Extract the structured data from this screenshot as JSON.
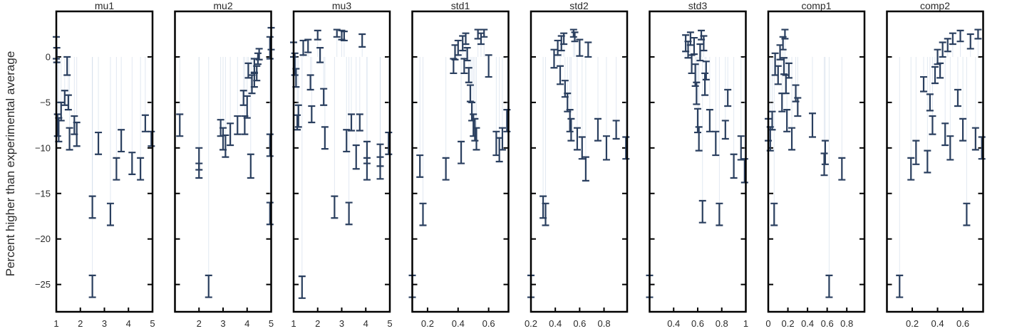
{
  "chart_data": {
    "type": "scatter",
    "ylabel": "Percent higher than experimental average",
    "ylim": [
      -28,
      5
    ],
    "yticks": [
      0,
      -5,
      -10,
      -15,
      -20,
      -25
    ],
    "grid": false,
    "marker": "error-bar",
    "color": "#2a3f5f",
    "panels": [
      {
        "title": "mu1",
        "xlim": [
          1,
          5
        ],
        "xticks": [
          1,
          2,
          3,
          4,
          5
        ],
        "points": [
          {
            "x": 1.0,
            "y": 1.0,
            "e": 1.2
          },
          {
            "x": 1.02,
            "y": 0.2,
            "e": 0.8
          },
          {
            "x": 1.05,
            "y": -7.5,
            "e": 1.2
          },
          {
            "x": 1.1,
            "y": -8.0,
            "e": 1.3
          },
          {
            "x": 1.2,
            "y": -6.0,
            "e": 1.0
          },
          {
            "x": 1.35,
            "y": -4.5,
            "e": 0.8
          },
          {
            "x": 1.45,
            "y": -1.0,
            "e": 1.0
          },
          {
            "x": 1.5,
            "y": -5.0,
            "e": 0.8
          },
          {
            "x": 1.55,
            "y": -9.0,
            "e": 1.2
          },
          {
            "x": 1.75,
            "y": -7.5,
            "e": 1.0
          },
          {
            "x": 1.85,
            "y": -8.5,
            "e": 1.3
          },
          {
            "x": 2.5,
            "y": -16.5,
            "e": 1.2
          },
          {
            "x": 2.5,
            "y": -25.2,
            "e": 1.2
          },
          {
            "x": 2.75,
            "y": -9.5,
            "e": 1.2
          },
          {
            "x": 3.25,
            "y": -17.3,
            "e": 1.2
          },
          {
            "x": 3.5,
            "y": -12.3,
            "e": 1.2
          },
          {
            "x": 3.7,
            "y": -9.2,
            "e": 1.2
          },
          {
            "x": 4.15,
            "y": -11.7,
            "e": 1.2
          },
          {
            "x": 4.5,
            "y": -12.3,
            "e": 1.2
          },
          {
            "x": 4.7,
            "y": -7.3,
            "e": 0.9
          },
          {
            "x": 4.95,
            "y": -9.0,
            "e": 0.8
          }
        ]
      },
      {
        "title": "mu2",
        "xlim": [
          1,
          5
        ],
        "xticks": [
          2,
          3,
          4,
          5
        ],
        "points": [
          {
            "x": 1.2,
            "y": -7.5,
            "e": 1.2
          },
          {
            "x": 2.0,
            "y": -11.2,
            "e": 1.2
          },
          {
            "x": 2.0,
            "y": -12.5,
            "e": 0.8
          },
          {
            "x": 2.4,
            "y": -25.2,
            "e": 1.2
          },
          {
            "x": 2.9,
            "y": -7.8,
            "e": 0.9
          },
          {
            "x": 3.0,
            "y": -9.0,
            "e": 1.2
          },
          {
            "x": 3.1,
            "y": -9.8,
            "e": 1.2
          },
          {
            "x": 3.3,
            "y": -8.5,
            "e": 1.2
          },
          {
            "x": 3.6,
            "y": -7.5,
            "e": 1.0
          },
          {
            "x": 3.85,
            "y": -4.5,
            "e": 0.8
          },
          {
            "x": 3.9,
            "y": -7.5,
            "e": 1.0
          },
          {
            "x": 4.0,
            "y": -5.5,
            "e": 1.2
          },
          {
            "x": 4.05,
            "y": -1.5,
            "e": 0.8
          },
          {
            "x": 4.15,
            "y": -12.0,
            "e": 1.3
          },
          {
            "x": 4.2,
            "y": -3.0,
            "e": 1.0
          },
          {
            "x": 4.3,
            "y": -1.0,
            "e": 0.8
          },
          {
            "x": 4.3,
            "y": -2.5,
            "e": 0.8
          },
          {
            "x": 4.4,
            "y": -1.8,
            "e": 0.8
          },
          {
            "x": 4.45,
            "y": -0.2,
            "e": 0.6
          },
          {
            "x": 4.5,
            "y": 0.3,
            "e": 0.6
          },
          {
            "x": 4.95,
            "y": -17.2,
            "e": 1.2
          },
          {
            "x": 4.95,
            "y": -9.7,
            "e": 1.2
          },
          {
            "x": 4.95,
            "y": 1.0,
            "e": 1.2
          },
          {
            "x": 5.0,
            "y": 2.0,
            "e": 1.2
          }
        ]
      },
      {
        "title": "mu3",
        "xlim": [
          1,
          5
        ],
        "xticks": [
          1,
          2,
          3,
          4,
          5
        ],
        "points": [
          {
            "x": 1.0,
            "y": 0.8,
            "e": 0.8
          },
          {
            "x": 1.05,
            "y": -0.8,
            "e": 1.2
          },
          {
            "x": 1.1,
            "y": -2.3,
            "e": 1.0
          },
          {
            "x": 1.15,
            "y": -7.2,
            "e": 0.8
          },
          {
            "x": 1.2,
            "y": -6.5,
            "e": 1.2
          },
          {
            "x": 1.35,
            "y": -25.3,
            "e": 1.2
          },
          {
            "x": 1.4,
            "y": 1.0,
            "e": 0.8
          },
          {
            "x": 1.6,
            "y": 1.2,
            "e": 0.7
          },
          {
            "x": 1.7,
            "y": -2.8,
            "e": 0.8
          },
          {
            "x": 1.75,
            "y": -6.3,
            "e": 0.9
          },
          {
            "x": 2.0,
            "y": 2.4,
            "e": 0.5
          },
          {
            "x": 2.1,
            "y": 0.2,
            "e": 0.8
          },
          {
            "x": 2.25,
            "y": -4.4,
            "e": 0.9
          },
          {
            "x": 2.3,
            "y": -8.9,
            "e": 1.2
          },
          {
            "x": 2.7,
            "y": -16.5,
            "e": 1.2
          },
          {
            "x": 2.8,
            "y": 2.6,
            "e": 0.4
          },
          {
            "x": 3.0,
            "y": 2.4,
            "e": 0.5
          },
          {
            "x": 3.1,
            "y": 2.3,
            "e": 0.5
          },
          {
            "x": 3.2,
            "y": -9.2,
            "e": 1.2
          },
          {
            "x": 3.3,
            "y": -17.2,
            "e": 1.2
          },
          {
            "x": 3.4,
            "y": -7.2,
            "e": 0.9
          },
          {
            "x": 3.6,
            "y": -11.0,
            "e": 1.3
          },
          {
            "x": 3.75,
            "y": -7.2,
            "e": 0.9
          },
          {
            "x": 3.85,
            "y": 1.8,
            "e": 0.7
          },
          {
            "x": 4.05,
            "y": -10.5,
            "e": 1.2
          },
          {
            "x": 4.05,
            "y": -12.3,
            "e": 1.2
          },
          {
            "x": 4.6,
            "y": -10.8,
            "e": 1.2
          },
          {
            "x": 4.6,
            "y": -12.2,
            "e": 1.2
          },
          {
            "x": 4.95,
            "y": -9.5,
            "e": 1.2
          }
        ]
      },
      {
        "title": "std1",
        "xlim": [
          0.1,
          0.73
        ],
        "xticks": [
          0.2,
          0.4,
          0.6
        ],
        "points": [
          {
            "x": 0.1,
            "y": -25.2,
            "e": 1.2
          },
          {
            "x": 0.15,
            "y": -12.0,
            "e": 1.2
          },
          {
            "x": 0.17,
            "y": -17.3,
            "e": 1.2
          },
          {
            "x": 0.32,
            "y": -12.3,
            "e": 1.2
          },
          {
            "x": 0.37,
            "y": -1.0,
            "e": 0.8
          },
          {
            "x": 0.38,
            "y": 0.5,
            "e": 0.8
          },
          {
            "x": 0.4,
            "y": 1.0,
            "e": 0.8
          },
          {
            "x": 0.42,
            "y": -10.5,
            "e": 1.2
          },
          {
            "x": 0.43,
            "y": 1.5,
            "e": 0.8
          },
          {
            "x": 0.44,
            "y": -1.0,
            "e": 0.8
          },
          {
            "x": 0.45,
            "y": 2.0,
            "e": 0.6
          },
          {
            "x": 0.46,
            "y": 0.3,
            "e": 0.7
          },
          {
            "x": 0.47,
            "y": -2.0,
            "e": 0.8
          },
          {
            "x": 0.48,
            "y": -4.0,
            "e": 0.9
          },
          {
            "x": 0.49,
            "y": -6.0,
            "e": 1.0
          },
          {
            "x": 0.5,
            "y": -7.5,
            "e": 1.2
          },
          {
            "x": 0.51,
            "y": -8.0,
            "e": 1.2
          },
          {
            "x": 0.52,
            "y": -9.0,
            "e": 1.2
          },
          {
            "x": 0.53,
            "y": 2.5,
            "e": 0.5
          },
          {
            "x": 0.55,
            "y": 2.0,
            "e": 0.6
          },
          {
            "x": 0.57,
            "y": 2.6,
            "e": 0.4
          },
          {
            "x": 0.6,
            "y": -1.0,
            "e": 1.2
          },
          {
            "x": 0.65,
            "y": -9.5,
            "e": 1.3
          },
          {
            "x": 0.67,
            "y": -10.2,
            "e": 1.3
          },
          {
            "x": 0.69,
            "y": -9.0,
            "e": 1.2
          },
          {
            "x": 0.72,
            "y": -7.0,
            "e": 1.2
          }
        ]
      },
      {
        "title": "std2",
        "xlim": [
          0.2,
          0.99
        ],
        "xticks": [
          0.2,
          0.4,
          0.6,
          0.8
        ],
        "points": [
          {
            "x": 0.2,
            "y": -25.2,
            "e": 1.2
          },
          {
            "x": 0.3,
            "y": -16.5,
            "e": 1.2
          },
          {
            "x": 0.32,
            "y": -17.3,
            "e": 1.2
          },
          {
            "x": 0.39,
            "y": -0.2,
            "e": 1.0
          },
          {
            "x": 0.42,
            "y": 1.0,
            "e": 0.8
          },
          {
            "x": 0.44,
            "y": -2.0,
            "e": 1.0
          },
          {
            "x": 0.45,
            "y": 1.5,
            "e": 0.8
          },
          {
            "x": 0.47,
            "y": 2.0,
            "e": 0.6
          },
          {
            "x": 0.48,
            "y": -3.5,
            "e": 0.9
          },
          {
            "x": 0.5,
            "y": -5.0,
            "e": 1.0
          },
          {
            "x": 0.52,
            "y": -7.0,
            "e": 1.2
          },
          {
            "x": 0.53,
            "y": -8.0,
            "e": 1.2
          },
          {
            "x": 0.55,
            "y": 2.6,
            "e": 0.4
          },
          {
            "x": 0.56,
            "y": 2.2,
            "e": 0.5
          },
          {
            "x": 0.58,
            "y": -9.0,
            "e": 1.2
          },
          {
            "x": 0.6,
            "y": 1.0,
            "e": 0.9
          },
          {
            "x": 0.62,
            "y": -10.0,
            "e": 1.2
          },
          {
            "x": 0.65,
            "y": -12.3,
            "e": 1.3
          },
          {
            "x": 0.67,
            "y": 0.8,
            "e": 0.8
          },
          {
            "x": 0.75,
            "y": -8.0,
            "e": 1.2
          },
          {
            "x": 0.82,
            "y": -10.0,
            "e": 1.3
          },
          {
            "x": 0.9,
            "y": -8.0,
            "e": 1.0
          },
          {
            "x": 0.98,
            "y": -10.0,
            "e": 1.2
          }
        ]
      },
      {
        "title": "std3",
        "xlim": [
          0.2,
          1.0
        ],
        "xticks": [
          0.4,
          0.6,
          0.8,
          1
        ],
        "points": [
          {
            "x": 0.2,
            "y": -25.2,
            "e": 1.2
          },
          {
            "x": 0.5,
            "y": 1.5,
            "e": 0.9
          },
          {
            "x": 0.52,
            "y": 0.8,
            "e": 0.9
          },
          {
            "x": 0.54,
            "y": 2.0,
            "e": 0.7
          },
          {
            "x": 0.55,
            "y": -0.8,
            "e": 1.0
          },
          {
            "x": 0.57,
            "y": 1.2,
            "e": 0.9
          },
          {
            "x": 0.58,
            "y": -2.0,
            "e": 1.2
          },
          {
            "x": 0.59,
            "y": -4.0,
            "e": 1.2
          },
          {
            "x": 0.6,
            "y": -7.0,
            "e": 1.3
          },
          {
            "x": 0.61,
            "y": -9.0,
            "e": 1.3
          },
          {
            "x": 0.62,
            "y": 0.5,
            "e": 0.9
          },
          {
            "x": 0.63,
            "y": 2.4,
            "e": 0.5
          },
          {
            "x": 0.64,
            "y": -17.0,
            "e": 1.2
          },
          {
            "x": 0.65,
            "y": 1.5,
            "e": 0.8
          },
          {
            "x": 0.66,
            "y": -3.0,
            "e": 1.2
          },
          {
            "x": 0.67,
            "y": -1.5,
            "e": 1.0
          },
          {
            "x": 0.7,
            "y": -7.0,
            "e": 1.2
          },
          {
            "x": 0.75,
            "y": -9.5,
            "e": 1.3
          },
          {
            "x": 0.78,
            "y": -17.3,
            "e": 1.2
          },
          {
            "x": 0.83,
            "y": -8.0,
            "e": 1.0
          },
          {
            "x": 0.85,
            "y": -4.5,
            "e": 0.9
          },
          {
            "x": 0.9,
            "y": -12.0,
            "e": 1.3
          },
          {
            "x": 0.96,
            "y": -10.0,
            "e": 1.3
          },
          {
            "x": 0.99,
            "y": -12.5,
            "e": 1.3
          }
        ]
      },
      {
        "title": "comp1",
        "xlim": [
          0.0,
          0.98
        ],
        "xticks": [
          0,
          0.2,
          0.4,
          0.6,
          0.8
        ],
        "points": [
          {
            "x": 0.0,
            "y": -8.0,
            "e": 1.2
          },
          {
            "x": 0.02,
            "y": -9.0,
            "e": 1.3
          },
          {
            "x": 0.04,
            "y": -7.0,
            "e": 1.0
          },
          {
            "x": 0.06,
            "y": -17.3,
            "e": 1.2
          },
          {
            "x": 0.07,
            "y": -0.8,
            "e": 1.2
          },
          {
            "x": 0.1,
            "y": -2.0,
            "e": 1.0
          },
          {
            "x": 0.12,
            "y": 0.5,
            "e": 0.8
          },
          {
            "x": 0.14,
            "y": -5.0,
            "e": 1.0
          },
          {
            "x": 0.15,
            "y": 1.5,
            "e": 0.7
          },
          {
            "x": 0.16,
            "y": -1.0,
            "e": 0.9
          },
          {
            "x": 0.17,
            "y": 2.5,
            "e": 0.5
          },
          {
            "x": 0.18,
            "y": -3.0,
            "e": 1.0
          },
          {
            "x": 0.19,
            "y": -7.0,
            "e": 1.2
          },
          {
            "x": 0.21,
            "y": -1.5,
            "e": 0.8
          },
          {
            "x": 0.24,
            "y": -9.0,
            "e": 1.2
          },
          {
            "x": 0.28,
            "y": -4.0,
            "e": 0.9
          },
          {
            "x": 0.3,
            "y": -5.5,
            "e": 1.0
          },
          {
            "x": 0.45,
            "y": -7.5,
            "e": 1.3
          },
          {
            "x": 0.57,
            "y": -11.8,
            "e": 1.2
          },
          {
            "x": 0.58,
            "y": -10.5,
            "e": 1.3
          },
          {
            "x": 0.62,
            "y": -25.2,
            "e": 1.2
          },
          {
            "x": 0.75,
            "y": -12.3,
            "e": 1.2
          }
        ]
      },
      {
        "title": "comp2",
        "xlim": [
          0.0,
          0.76
        ],
        "xticks": [
          0.2,
          0.4,
          0.6
        ],
        "points": [
          {
            "x": 0.1,
            "y": -25.2,
            "e": 1.2
          },
          {
            "x": 0.19,
            "y": -12.3,
            "e": 1.2
          },
          {
            "x": 0.23,
            "y": -10.5,
            "e": 1.3
          },
          {
            "x": 0.29,
            "y": -3.0,
            "e": 0.8
          },
          {
            "x": 0.32,
            "y": -11.5,
            "e": 1.2
          },
          {
            "x": 0.34,
            "y": -5.0,
            "e": 0.9
          },
          {
            "x": 0.36,
            "y": -7.5,
            "e": 1.0
          },
          {
            "x": 0.38,
            "y": -2.0,
            "e": 0.9
          },
          {
            "x": 0.4,
            "y": 0.0,
            "e": 0.8
          },
          {
            "x": 0.42,
            "y": -1.5,
            "e": 0.8
          },
          {
            "x": 0.44,
            "y": 0.8,
            "e": 0.8
          },
          {
            "x": 0.46,
            "y": -8.5,
            "e": 1.2
          },
          {
            "x": 0.48,
            "y": 1.3,
            "e": 0.7
          },
          {
            "x": 0.5,
            "y": -10.0,
            "e": 1.3
          },
          {
            "x": 0.52,
            "y": 2.0,
            "e": 0.6
          },
          {
            "x": 0.56,
            "y": -4.5,
            "e": 0.9
          },
          {
            "x": 0.58,
            "y": 2.3,
            "e": 0.6
          },
          {
            "x": 0.6,
            "y": -8.0,
            "e": 1.2
          },
          {
            "x": 0.63,
            "y": -17.3,
            "e": 1.2
          },
          {
            "x": 0.66,
            "y": 1.7,
            "e": 0.8
          },
          {
            "x": 0.7,
            "y": -9.0,
            "e": 1.2
          },
          {
            "x": 0.72,
            "y": 2.5,
            "e": 0.5
          },
          {
            "x": 0.75,
            "y": -10.0,
            "e": 1.2
          }
        ]
      }
    ]
  }
}
